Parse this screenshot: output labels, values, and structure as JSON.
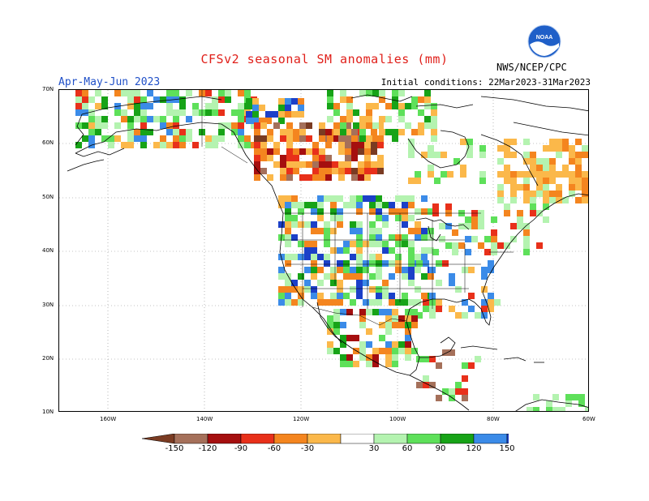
{
  "header": {
    "title": "CFSv2 seasonal SM anomalies (mm)",
    "season": "Apr-May-Jun 2023",
    "initial_conditions": "Initial conditions: 22Mar2023-31Mar2023",
    "agency": "NWS/NCEP/CPC",
    "logo_text": "NOAA"
  },
  "map": {
    "lat_labels": [
      "70N",
      "60N",
      "50N",
      "40N",
      "30N",
      "20N",
      "10N"
    ],
    "lon_labels": [
      "160W",
      "140W",
      "120W",
      "100W",
      "80W",
      "60W"
    ]
  },
  "colorbar": {
    "labels": [
      "-150",
      "-120",
      "-90",
      "-60",
      "-30",
      "30",
      "60",
      "90",
      "120",
      "150"
    ],
    "colors": [
      "#7a3b22",
      "#a5705a",
      "#a50f0f",
      "#e8301a",
      "#f4851f",
      "#fbb84a",
      "#ffffff",
      "#b4f3b0",
      "#5ee05a",
      "#17a317",
      "#3b8be8",
      "#1c40c8"
    ]
  }
}
